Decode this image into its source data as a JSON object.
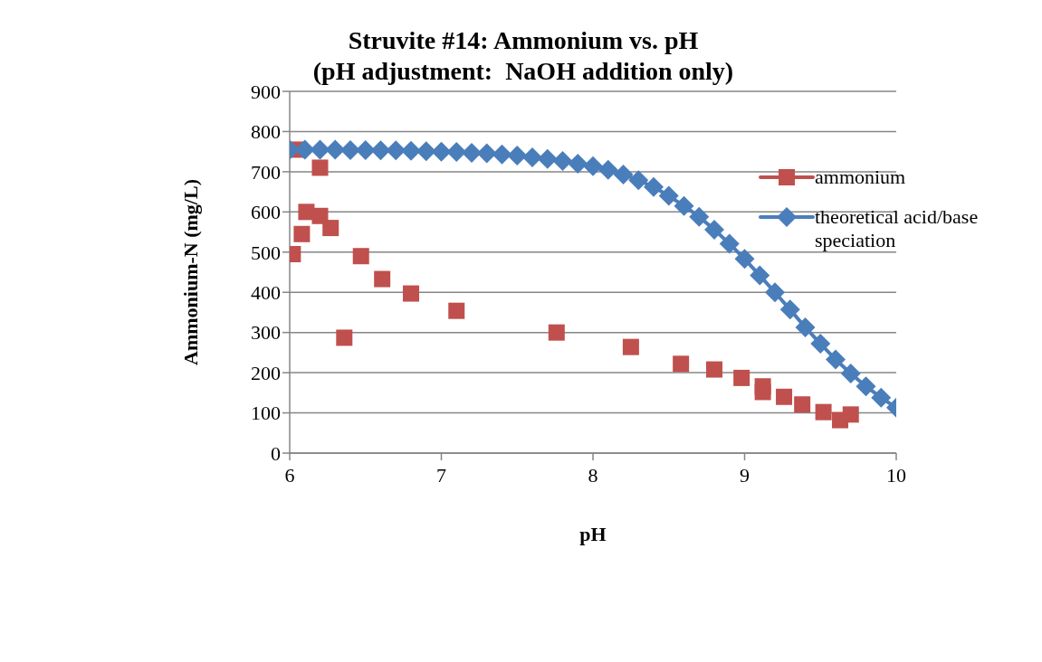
{
  "chart_data": {
    "type": "scatter",
    "title": "Struvite #14: Ammonium vs. pH\n(pH adjustment:  NaOH addition only)",
    "xlabel": "pH",
    "ylabel": "Ammonium-N (mg/L)",
    "xlim": [
      6,
      10
    ],
    "xticks": [
      6,
      7,
      8,
      9,
      10
    ],
    "ylim": [
      0,
      900
    ],
    "yticks": [
      0,
      100,
      200,
      300,
      400,
      500,
      600,
      700,
      800,
      900
    ],
    "grid": "y",
    "legend": "top right",
    "series": [
      {
        "name": "ammonium",
        "marker": "square",
        "color": "#c0504d",
        "x": [
          6.02,
          6.08,
          6.11,
          6.06,
          6.2,
          6.2,
          6.27,
          6.36,
          6.47,
          6.61,
          6.8,
          7.1,
          7.76,
          8.25,
          8.58,
          8.8,
          8.98,
          9.12,
          9.12,
          9.26,
          9.38,
          9.52,
          9.63,
          9.7
        ],
        "values": [
          495,
          545,
          600,
          755,
          590,
          710,
          560,
          287,
          490,
          433,
          397,
          354,
          300,
          264,
          222,
          208,
          187,
          166,
          152,
          140,
          121,
          102,
          82,
          96
        ]
      },
      {
        "name": "theoretical acid/base speciation",
        "type": "line",
        "marker": "diamond",
        "line_style": "solid",
        "color": "#4a7ebb",
        "x": [
          6.0,
          6.1,
          6.2,
          6.3,
          6.4,
          6.5,
          6.6,
          6.7,
          6.8,
          6.9,
          7.0,
          7.1,
          7.2,
          7.3,
          7.4,
          7.5,
          7.6,
          7.7,
          7.8,
          7.9,
          8.0,
          8.1,
          8.2,
          8.3,
          8.4,
          8.5,
          8.6,
          8.7,
          8.8,
          8.9,
          9.0,
          9.1,
          9.2,
          9.3,
          9.4,
          9.5,
          9.6,
          9.7,
          9.8,
          9.9,
          10.0
        ],
        "values": [
          755,
          755,
          755,
          755,
          754,
          754,
          753,
          753,
          752,
          751,
          750,
          749,
          747,
          746,
          743,
          740,
          736,
          732,
          727,
          720,
          714,
          705,
          693,
          679,
          662,
          640,
          615,
          588,
          556,
          521,
          483,
          442,
          400,
          357,
          313,
          272,
          233,
          198,
          166,
          138,
          113
        ]
      }
    ]
  }
}
